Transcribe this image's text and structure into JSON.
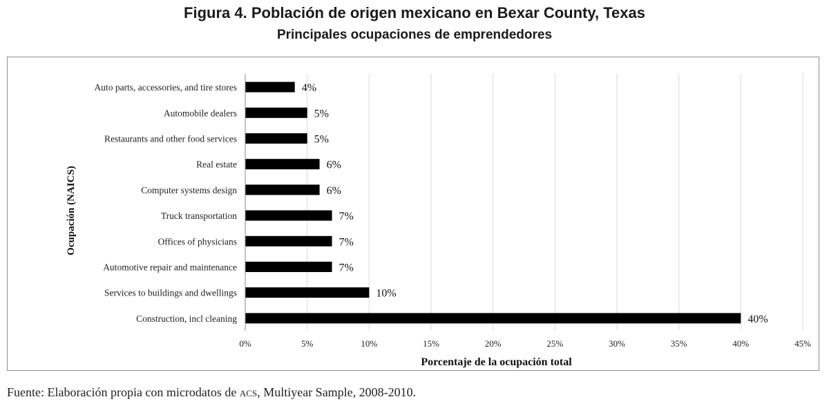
{
  "figure": {
    "title": "Figura 4. Población de origen mexicano en Bexar County, Texas",
    "subtitle": "Principales ocupaciones de emprendedores",
    "source_prefix": "Fuente: Elaboración propia con microdatos de ",
    "source_acronym": "ACS",
    "source_suffix": ", Multiyear Sample, 2008-2010."
  },
  "chart_data": {
    "type": "bar",
    "orientation": "horizontal",
    "categories": [
      "Auto parts, accessories, and tire stores",
      "Automobile dealers",
      "Restaurants and other food services",
      "Real estate",
      "Computer systems design",
      "Truck transportation",
      "Offices of physicians",
      "Automotive repair and maintenance",
      "Services to buildings and dwellings",
      "Construction, incl cleaning"
    ],
    "values": [
      4,
      5,
      5,
      6,
      6,
      7,
      7,
      7,
      10,
      40
    ],
    "value_labels": [
      "4%",
      "5%",
      "5%",
      "6%",
      "6%",
      "7%",
      "7%",
      "7%",
      "10%",
      "40%"
    ],
    "xlabel": "Porcentaje de la ocupación total",
    "ylabel": "Ocupación (NAICS)",
    "xlim": [
      0,
      45
    ],
    "xticks": [
      0,
      5,
      10,
      15,
      20,
      25,
      30,
      35,
      40,
      45
    ],
    "xtick_labels": [
      "0%",
      "5%",
      "10%",
      "15%",
      "20%",
      "25%",
      "30%",
      "35%",
      "40%",
      "45%"
    ],
    "grid": true,
    "legend": "none",
    "bar_color": "#000000",
    "grid_color": "#d9d9d9"
  }
}
